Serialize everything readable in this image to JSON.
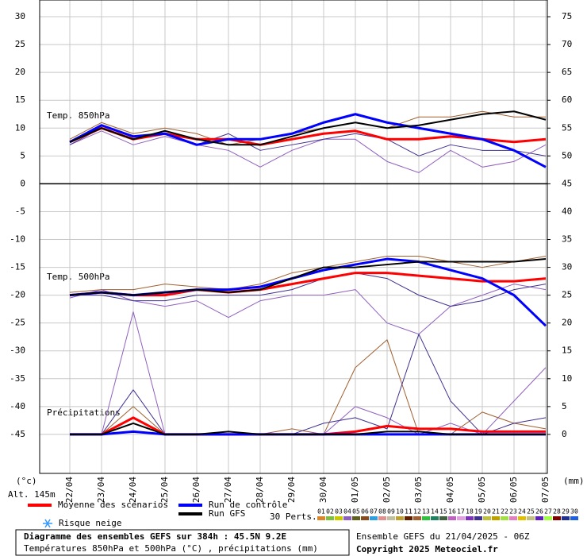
{
  "chart_data": {
    "type": "line",
    "title": "Diagramme des ensembles GEFS sur 384h : 45.5N 9.2E",
    "subtitle": "Températures 850hPa et 500hPa (°C) , précipitations (mm)",
    "run_info": "Ensemble GEFS du 21/04/2025 - 06Z",
    "copyright": "Copyright 2025 Meteociel.fr",
    "altitude": "Alt. 145m",
    "y_unit": "(°c)",
    "y2_unit": "(mm)",
    "panel_labels": [
      "Temp. 850hPa",
      "Temp. 500hPa",
      "Précipitations"
    ],
    "snow_label": "Risque neige",
    "categories": [
      "22/04",
      "23/04",
      "24/04",
      "25/04",
      "26/04",
      "27/04",
      "28/04",
      "29/04",
      "30/04",
      "01/05",
      "02/05",
      "03/05",
      "04/05",
      "05/05",
      "06/05",
      "07/05"
    ],
    "ylim": [
      -52,
      33
    ],
    "yticks": [
      30,
      25,
      20,
      15,
      10,
      5,
      0,
      -5,
      -10,
      -15,
      -20,
      -25,
      -30,
      -35,
      -40,
      -45
    ],
    "y2lim": [
      -7,
      78
    ],
    "y2ticks": [
      75,
      70,
      65,
      60,
      55,
      50,
      45,
      40,
      35,
      30,
      25,
      20,
      15,
      10,
      5,
      0
    ],
    "grid": true,
    "series": [
      {
        "name": "Moyenne des scénarios",
        "color": "#ff0000",
        "t850": [
          7.5,
          10,
          8,
          9,
          8,
          8,
          7,
          8,
          9,
          9.5,
          8,
          8,
          8.5,
          8,
          7.5,
          8
        ],
        "t500": [
          -20,
          -19.5,
          -20,
          -20,
          -19,
          -19.5,
          -19,
          -18,
          -17,
          -16,
          -16,
          -16.5,
          -17,
          -17.5,
          -17.5,
          -17
        ],
        "precip": [
          0,
          0,
          3,
          0,
          0,
          0,
          0,
          0,
          0,
          0.5,
          1.5,
          1,
          1,
          0.5,
          0.5,
          0.5
        ]
      },
      {
        "name": "Run de contrôle",
        "color": "#0000ff",
        "t850": [
          7.5,
          10.5,
          8.5,
          9,
          7,
          8,
          8,
          9,
          11,
          12.5,
          11,
          10,
          9,
          8,
          6,
          3
        ],
        "t500": [
          -20,
          -19.5,
          -20,
          -19.5,
          -19,
          -19,
          -18.5,
          -17,
          -15.5,
          -14.5,
          -13.5,
          -14,
          -15.5,
          -17,
          -20,
          -25.5
        ],
        "precip": [
          0,
          0,
          0.5,
          0,
          0,
          0,
          0,
          0,
          0,
          0,
          0,
          0,
          0,
          0,
          0,
          0
        ]
      },
      {
        "name": "Run GFS",
        "color": "#000000",
        "t850": [
          7.5,
          10,
          8,
          9.5,
          8,
          7,
          7,
          8.5,
          10,
          11,
          10,
          10.5,
          11.5,
          12.5,
          13,
          11.5
        ],
        "t500": [
          -20,
          -19.5,
          -20,
          -19.5,
          -19,
          -19.5,
          -19,
          -17,
          -15,
          -15,
          -14.5,
          -14,
          -14,
          -14,
          -14,
          -13.5
        ],
        "precip": [
          0,
          0,
          2,
          0,
          0,
          0.5,
          0,
          0,
          0,
          0,
          0.5,
          0.5,
          0,
          0,
          0,
          0
        ]
      }
    ],
    "perturbations": {
      "label": "30 Perts.",
      "members": [
        {
          "name": "01",
          "color": "#d9862f"
        },
        {
          "name": "02",
          "color": "#7fbf3f"
        },
        {
          "name": "03",
          "color": "#c9c900"
        },
        {
          "name": "04",
          "color": "#9060c0",
          "t850": [
            7,
            9.5,
            7,
            8.5,
            7,
            6,
            3,
            6,
            8,
            8,
            4,
            2,
            6,
            3,
            4,
            7
          ],
          "t500": [
            -20.5,
            -19,
            -21,
            -22,
            -21,
            -24,
            -21,
            -20,
            -20,
            -19,
            -25,
            -27,
            -22,
            -20,
            -18,
            -19
          ],
          "precip": [
            0,
            0,
            22,
            0,
            0,
            0,
            0,
            0,
            0,
            5,
            3,
            0,
            2,
            0,
            6,
            12
          ]
        },
        {
          "name": "05",
          "color": "#606020"
        },
        {
          "name": "06",
          "color": "#8a4a20"
        },
        {
          "name": "07",
          "color": "#2f9fdf"
        },
        {
          "name": "08",
          "color": "#e09090"
        },
        {
          "name": "09",
          "color": "#c0c0a0"
        },
        {
          "name": "10",
          "color": "#c0a030"
        },
        {
          "name": "11",
          "color": "#602000"
        },
        {
          "name": "12",
          "color": "#a06030",
          "t850": [
            8,
            11,
            9,
            10,
            9,
            7,
            8,
            9,
            10,
            11,
            10,
            12,
            12,
            13,
            12,
            12
          ],
          "t500": [
            -19.5,
            -19,
            -19,
            -18,
            -18.5,
            -19,
            -18,
            -16,
            -15,
            -14,
            -13,
            -13,
            -14,
            -15,
            -14,
            -13
          ],
          "precip": [
            0,
            0,
            5,
            0,
            0,
            0,
            0,
            1,
            0,
            12,
            17,
            0,
            0,
            4,
            2,
            1
          ]
        },
        {
          "name": "13",
          "color": "#30c040"
        },
        {
          "name": "14",
          "color": "#208060"
        },
        {
          "name": "15",
          "color": "#406040"
        },
        {
          "name": "16",
          "color": "#c060c0"
        },
        {
          "name": "17",
          "color": "#e0a0e0"
        },
        {
          "name": "18",
          "color": "#8030c0"
        },
        {
          "name": "19",
          "color": "#403090",
          "t850": [
            7,
            10,
            8,
            9,
            7,
            9,
            6,
            7,
            8,
            9,
            8,
            5,
            7,
            6,
            6,
            5
          ],
          "t500": [
            -20,
            -20,
            -21,
            -21,
            -20,
            -20,
            -20,
            -19,
            -17,
            -16,
            -17,
            -20,
            -22,
            -21,
            -19,
            -18
          ],
          "precip": [
            0,
            0,
            8,
            0,
            0,
            0,
            0,
            0,
            2,
            3,
            1,
            18,
            6,
            0,
            2,
            3
          ]
        },
        {
          "name": "20",
          "color": "#c0c040"
        },
        {
          "name": "21",
          "color": "#c0a000"
        },
        {
          "name": "22",
          "color": "#a0e040"
        },
        {
          "name": "23",
          "color": "#e080c0"
        },
        {
          "name": "24",
          "color": "#e0c000"
        },
        {
          "name": "25",
          "color": "#c0c080"
        },
        {
          "name": "26",
          "color": "#6020c0"
        },
        {
          "name": "27",
          "color": "#a0ff40"
        },
        {
          "name": "28",
          "color": "#800000"
        },
        {
          "name": "29",
          "color": "#203090"
        },
        {
          "name": "30",
          "color": "#2060e0"
        }
      ]
    }
  }
}
